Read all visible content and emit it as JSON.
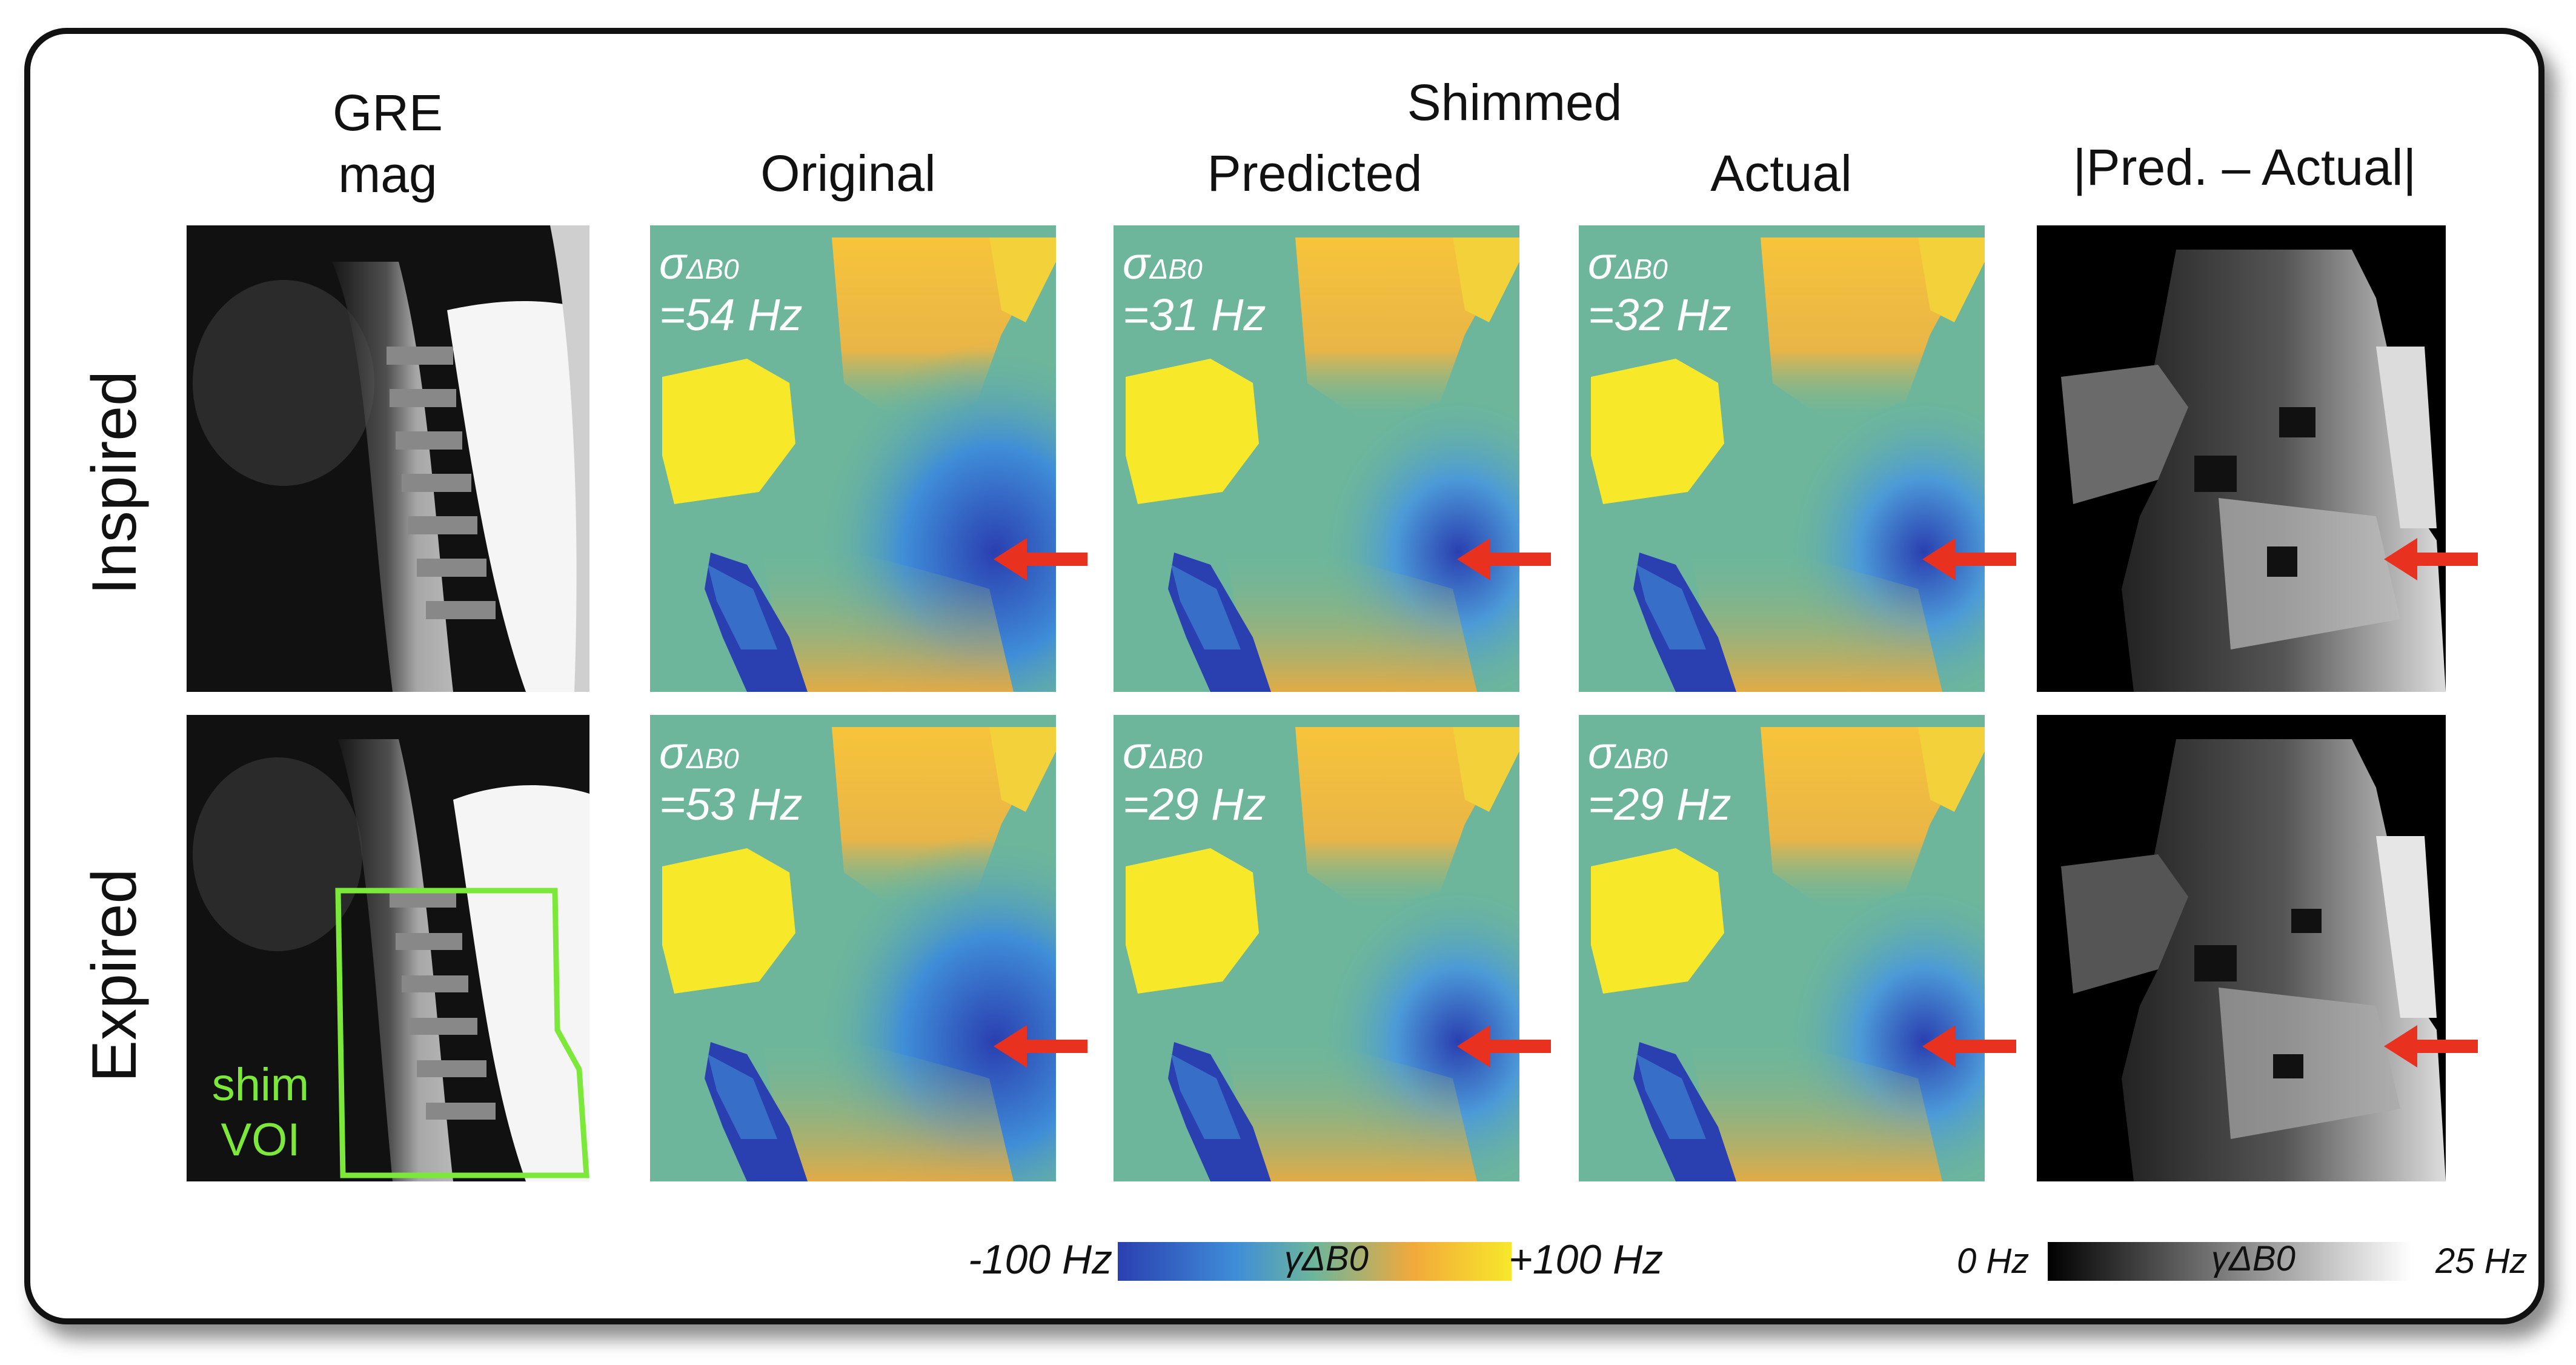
{
  "headers": {
    "gre_line1": "GRE",
    "gre_line2": "mag",
    "shimmed": "Shimmed",
    "original": "Original",
    "predicted": "Predicted",
    "actual": "Actual",
    "diff": "|Pred. – Actual|"
  },
  "rows": {
    "inspired": "Inspired",
    "expired": "Expired"
  },
  "voi": {
    "line1": "shim",
    "line2": "VOI"
  },
  "sigma_label": "σ",
  "sigma_sub": "ΔB0",
  "sigma_values": {
    "inspired_original": "=54 Hz",
    "inspired_predicted": "=31 Hz",
    "inspired_actual": "=32 Hz",
    "expired_original": "=53 Hz",
    "expired_predicted": "=29 Hz",
    "expired_actual": "=29 Hz"
  },
  "colorbar_field": {
    "min": "-100 Hz",
    "label": "γΔB0",
    "max": "+100 Hz"
  },
  "colorbar_diff": {
    "min": "0 Hz",
    "label": "γΔB0",
    "max": "25 Hz"
  },
  "colors": {
    "background": "#6DB69B",
    "yellow": "#F7E82A",
    "orange": "#F2A93B",
    "blue": "#2A3FB0",
    "arrow": "#E8311F",
    "voi": "#7CE83A"
  }
}
